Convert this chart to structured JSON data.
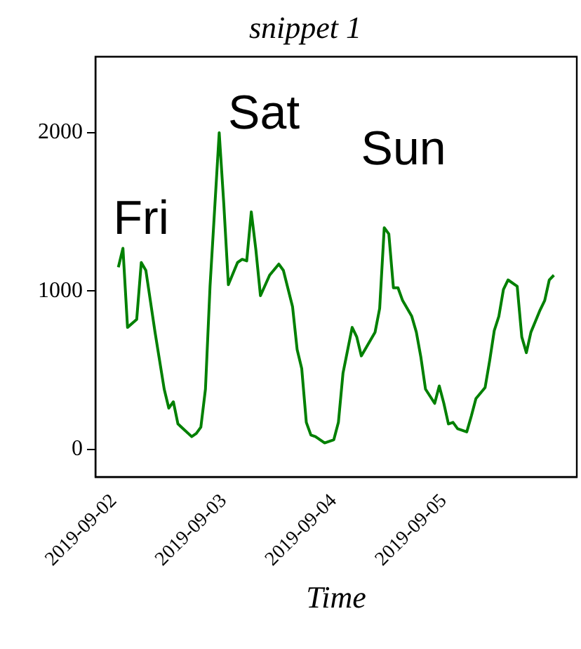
{
  "chart_data": {
    "type": "line",
    "title": "snippet 1",
    "xlabel": "Time",
    "x": [
      "2019-09-02T01:00",
      "2019-09-02T02:00",
      "2019-09-02T03:00",
      "2019-09-02T05:00",
      "2019-09-02T06:00",
      "2019-09-02T07:00",
      "2019-09-02T09:00",
      "2019-09-02T11:00",
      "2019-09-02T12:00",
      "2019-09-02T13:00",
      "2019-09-02T14:00",
      "2019-09-02T17:00",
      "2019-09-02T18:00",
      "2019-09-02T19:00",
      "2019-09-02T20:00",
      "2019-09-02T21:00",
      "2019-09-02T23:00",
      "2019-09-03T00:00",
      "2019-09-03T01:00",
      "2019-09-03T03:00",
      "2019-09-03T04:00",
      "2019-09-03T05:00",
      "2019-09-03T06:00",
      "2019-09-03T07:00",
      "2019-09-03T08:00",
      "2019-09-03T10:00",
      "2019-09-03T12:00",
      "2019-09-03T13:00",
      "2019-09-03T15:00",
      "2019-09-03T16:00",
      "2019-09-03T17:00",
      "2019-09-03T18:00",
      "2019-09-03T19:00",
      "2019-09-03T20:00",
      "2019-09-03T22:00",
      "2019-09-04T00:00",
      "2019-09-04T01:00",
      "2019-09-04T02:00",
      "2019-09-04T04:00",
      "2019-09-04T05:00",
      "2019-09-04T06:00",
      "2019-09-04T07:00",
      "2019-09-04T09:00",
      "2019-09-04T10:00",
      "2019-09-04T11:00",
      "2019-09-04T12:00",
      "2019-09-04T13:00",
      "2019-09-04T14:00",
      "2019-09-04T15:00",
      "2019-09-04T17:00",
      "2019-09-04T18:00",
      "2019-09-04T19:00",
      "2019-09-04T20:00",
      "2019-09-04T22:00",
      "2019-09-04T23:00",
      "2019-09-05T00:00",
      "2019-09-05T01:00",
      "2019-09-05T02:00",
      "2019-09-05T03:00",
      "2019-09-05T05:00",
      "2019-09-05T06:00",
      "2019-09-05T07:00",
      "2019-09-05T09:00",
      "2019-09-05T10:00",
      "2019-09-05T11:00",
      "2019-09-05T12:00",
      "2019-09-05T13:00",
      "2019-09-05T14:00",
      "2019-09-05T16:00",
      "2019-09-05T17:00",
      "2019-09-05T18:00",
      "2019-09-05T19:00",
      "2019-09-05T21:00",
      "2019-09-05T22:00",
      "2019-09-05T23:00",
      "2019-09-06T00:00"
    ],
    "series": [
      {
        "color": "#008000",
        "values": [
          1150,
          1270,
          770,
          820,
          1180,
          1130,
          740,
          380,
          260,
          300,
          160,
          80,
          100,
          140,
          380,
          1030,
          2000,
          1550,
          1040,
          1180,
          1200,
          1190,
          1500,
          1260,
          970,
          1100,
          1170,
          1130,
          900,
          630,
          510,
          170,
          90,
          80,
          40,
          60,
          170,
          480,
          770,
          710,
          590,
          640,
          740,
          890,
          1400,
          1360,
          1020,
          1020,
          940,
          840,
          740,
          580,
          380,
          290,
          400,
          290,
          160,
          170,
          130,
          110,
          210,
          320,
          390,
          560,
          750,
          840,
          1010,
          1070,
          1030,
          710,
          610,
          740,
          880,
          940,
          1070,
          1100
        ]
      }
    ],
    "xlim": [
      "2019-09-01T20:00",
      "2019-09-06T05:00"
    ],
    "xticks": [
      "2019-09-02",
      "2019-09-03",
      "2019-09-04",
      "2019-09-05"
    ],
    "ylim": [
      -175,
      2480
    ],
    "yticks": [
      0,
      1000,
      2000
    ],
    "grid": false,
    "legend": false,
    "marker": "none",
    "line_style": "solid",
    "annotations": [
      "Fri",
      "Sat",
      "Sun"
    ]
  }
}
